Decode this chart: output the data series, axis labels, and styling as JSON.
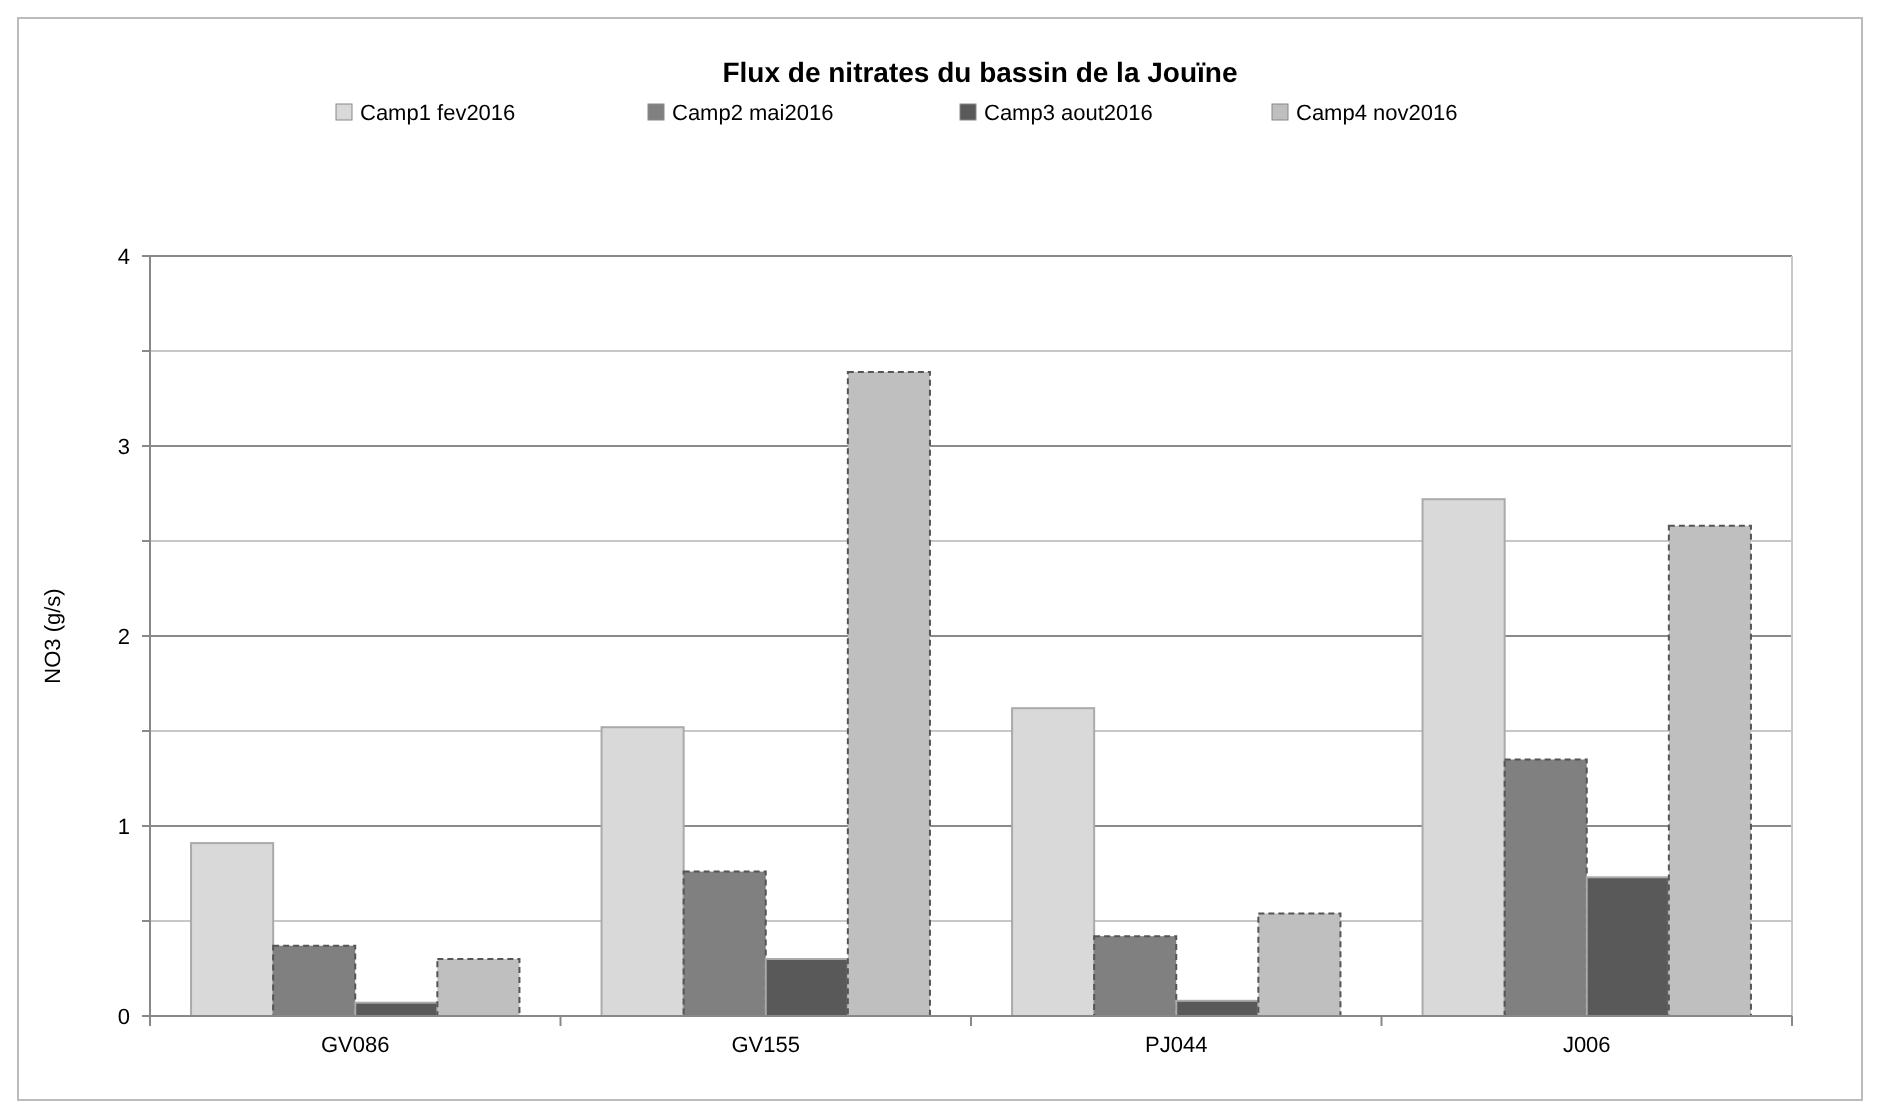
{
  "chart_data": {
    "type": "bar",
    "title": "Flux de nitrates du bassin de la Jouïne",
    "ylabel": "NO3 (g/s)",
    "categories": [
      "GV086",
      "GV155",
      "PJ044",
      "J006"
    ],
    "series": [
      {
        "name": "Camp1 fev2016",
        "color": "#d9d9d9",
        "values": [
          0.91,
          1.52,
          1.62,
          2.72
        ]
      },
      {
        "name": "Camp2 mai2016",
        "color": "#808080",
        "values": [
          0.37,
          0.76,
          0.42,
          1.35
        ],
        "line_style": "dashed"
      },
      {
        "name": "Camp3 aout2016",
        "color": "#595959",
        "values": [
          0.07,
          0.3,
          0.08,
          0.73
        ]
      },
      {
        "name": "Camp4 nov2016",
        "color": "#bfbfbf",
        "values": [
          0.3,
          3.39,
          0.54,
          2.58
        ],
        "line_style": "dashed"
      }
    ],
    "ylim": [
      0,
      4
    ],
    "yticks": [
      0,
      {
        "value": 0.5,
        "label": null
      },
      1,
      {
        "value": 1.5,
        "label": null
      },
      2,
      {
        "value": 2.5,
        "label": null
      },
      3,
      {
        "value": 3.5,
        "label": null
      },
      4
    ],
    "grid": true,
    "legend": "top"
  }
}
